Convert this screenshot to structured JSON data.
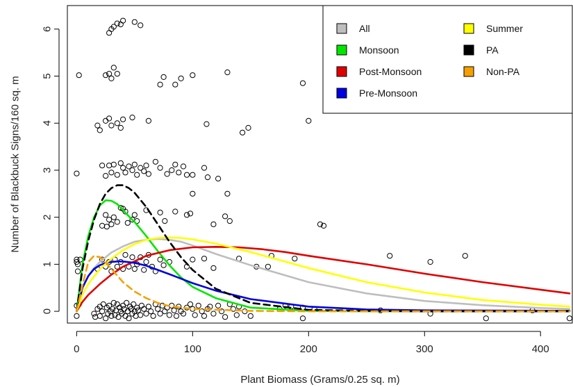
{
  "chart_data": {
    "type": "scatter",
    "title": "",
    "xlabel": "Plant Biomass (Grams/0.25 sq. m)",
    "ylabel": "Number of Blackbuck Signs/160 sq. m",
    "xlim": [
      -8,
      428
    ],
    "ylim": [
      -0.25,
      6.5
    ],
    "xticks": [
      "0",
      "100",
      "200",
      "300",
      "400"
    ],
    "yticks": [
      "0",
      "1",
      "2",
      "3",
      "4",
      "5",
      "6"
    ],
    "grid": false,
    "legend_position": "top-right",
    "legend": [
      {
        "label": "All",
        "color": "#bebebe"
      },
      {
        "label": "Monsoon",
        "color": "#00e600"
      },
      {
        "label": "Post-Monsoon",
        "color": "#e00000"
      },
      {
        "label": "Pre-Monsoon",
        "color": "#0000e0"
      },
      {
        "label": "Summer",
        "color": "#ffff00"
      },
      {
        "label": "PA",
        "color": "#000000"
      },
      {
        "label": "Non-PA",
        "color": "#f5a000"
      }
    ],
    "points": [
      [
        0,
        0.12
      ],
      [
        0,
        -0.1
      ],
      [
        2,
        0.15
      ],
      [
        0,
        2.93
      ],
      [
        2,
        5.02
      ],
      [
        0,
        1.1
      ],
      [
        0,
        1.05
      ],
      [
        1,
        0.85
      ],
      [
        1,
        1.0
      ],
      [
        3,
        1.1
      ],
      [
        15,
        -0.05
      ],
      [
        16,
        -0.12
      ],
      [
        18,
        0.05
      ],
      [
        20,
        0.1
      ],
      [
        20,
        -0.1
      ],
      [
        22,
        0.0
      ],
      [
        23,
        0.15
      ],
      [
        25,
        -0.15
      ],
      [
        26,
        0.08
      ],
      [
        27,
        -0.05
      ],
      [
        28,
        0.12
      ],
      [
        29,
        0.0
      ],
      [
        30,
        -0.1
      ],
      [
        31,
        0.05
      ],
      [
        32,
        0.18
      ],
      [
        33,
        -0.08
      ],
      [
        34,
        0.02
      ],
      [
        35,
        0.15
      ],
      [
        36,
        -0.12
      ],
      [
        37,
        0.08
      ],
      [
        38,
        0.0
      ],
      [
        39,
        -0.05
      ],
      [
        40,
        0.12
      ],
      [
        41,
        0.05
      ],
      [
        42,
        -0.1
      ],
      [
        43,
        0.18
      ],
      [
        44,
        0.0
      ],
      [
        45,
        -0.15
      ],
      [
        46,
        0.1
      ],
      [
        47,
        0.05
      ],
      [
        48,
        -0.05
      ],
      [
        49,
        0.15
      ],
      [
        50,
        0.0
      ],
      [
        51,
        -0.1
      ],
      [
        52,
        0.08
      ],
      [
        53,
        0.02
      ],
      [
        55,
        -0.08
      ],
      [
        56,
        0.12
      ],
      [
        58,
        0.05
      ],
      [
        60,
        -0.05
      ],
      [
        62,
        0.1
      ],
      [
        64,
        0.0
      ],
      [
        66,
        -0.1
      ],
      [
        68,
        0.15
      ],
      [
        70,
        0.05
      ],
      [
        72,
        -0.05
      ],
      [
        74,
        0.12
      ],
      [
        76,
        0.0
      ],
      [
        78,
        0.08
      ],
      [
        80,
        -0.08
      ],
      [
        82,
        0.12
      ],
      [
        84,
        0.02
      ],
      [
        86,
        -0.1
      ],
      [
        88,
        0.1
      ],
      [
        90,
        0.0
      ],
      [
        92,
        -0.05
      ],
      [
        95,
        0.08
      ],
      [
        98,
        0.15
      ],
      [
        100,
        0.05
      ],
      [
        102,
        -0.08
      ],
      [
        105,
        0.12
      ],
      [
        108,
        0.0
      ],
      [
        110,
        -0.1
      ],
      [
        113,
        0.05
      ],
      [
        115,
        0.1
      ],
      [
        118,
        -0.05
      ],
      [
        122,
        0.12
      ],
      [
        125,
        0.0
      ],
      [
        128,
        -0.12
      ],
      [
        132,
        0.15
      ],
      [
        135,
        0.05
      ],
      [
        138,
        -0.08
      ],
      [
        140,
        0.1
      ],
      [
        145,
        0.0
      ],
      [
        150,
        -0.1
      ],
      [
        175,
        0.05
      ],
      [
        180,
        0.12
      ],
      [
        185,
        0.1
      ],
      [
        195,
        -0.15
      ],
      [
        195,
        0.08
      ],
      [
        205,
        0.05
      ],
      [
        262,
        0.02
      ],
      [
        305,
        -0.05
      ],
      [
        353,
        -0.15
      ],
      [
        393,
        0.02
      ],
      [
        425,
        -0.15
      ],
      [
        18,
        0.9
      ],
      [
        22,
        1.1
      ],
      [
        25,
        0.95
      ],
      [
        28,
        1.05
      ],
      [
        30,
        0.85
      ],
      [
        33,
        1.1
      ],
      [
        35,
        0.95
      ],
      [
        38,
        1.05
      ],
      [
        40,
        0.9
      ],
      [
        42,
        1.2
      ],
      [
        45,
        0.95
      ],
      [
        48,
        1.15
      ],
      [
        50,
        0.9
      ],
      [
        52,
        1.0
      ],
      [
        55,
        1.15
      ],
      [
        58,
        0.88
      ],
      [
        60,
        1.05
      ],
      [
        62,
        1.2
      ],
      [
        65,
        0.95
      ],
      [
        68,
        0.85
      ],
      [
        72,
        1.1
      ],
      [
        75,
        0.98
      ],
      [
        80,
        1.05
      ],
      [
        95,
        0.95
      ],
      [
        100,
        1.1
      ],
      [
        110,
        1.12
      ],
      [
        118,
        0.92
      ],
      [
        140,
        1.12
      ],
      [
        155,
        0.95
      ],
      [
        165,
        0.95
      ],
      [
        168,
        1.18
      ],
      [
        188,
        1.12
      ],
      [
        270,
        1.18
      ],
      [
        305,
        1.05
      ],
      [
        335,
        1.18
      ],
      [
        22,
        1.82
      ],
      [
        25,
        2.05
      ],
      [
        26,
        1.8
      ],
      [
        28,
        1.95
      ],
      [
        30,
        1.85
      ],
      [
        32,
        2.0
      ],
      [
        35,
        1.9
      ],
      [
        38,
        2.2
      ],
      [
        40,
        2.18
      ],
      [
        42,
        2.12
      ],
      [
        44,
        1.88
      ],
      [
        48,
        1.95
      ],
      [
        50,
        2.05
      ],
      [
        52,
        1.92
      ],
      [
        60,
        2.15
      ],
      [
        72,
        2.1
      ],
      [
        76,
        1.92
      ],
      [
        85,
        2.12
      ],
      [
        95,
        2.05
      ],
      [
        98,
        2.08
      ],
      [
        118,
        1.85
      ],
      [
        128,
        2.02
      ],
      [
        132,
        1.92
      ],
      [
        210,
        1.85
      ],
      [
        213,
        1.82
      ],
      [
        130,
        2.5
      ],
      [
        100,
        2.5
      ],
      [
        22,
        3.1
      ],
      [
        25,
        2.88
      ],
      [
        28,
        3.1
      ],
      [
        30,
        2.95
      ],
      [
        32,
        3.12
      ],
      [
        35,
        2.9
      ],
      [
        38,
        3.15
      ],
      [
        40,
        3.05
      ],
      [
        42,
        2.95
      ],
      [
        45,
        3.08
      ],
      [
        48,
        3.0
      ],
      [
        50,
        3.12
      ],
      [
        52,
        2.9
      ],
      [
        55,
        3.05
      ],
      [
        58,
        2.98
      ],
      [
        60,
        3.1
      ],
      [
        62,
        2.92
      ],
      [
        68,
        3.18
      ],
      [
        72,
        3.05
      ],
      [
        78,
        2.92
      ],
      [
        82,
        3.0
      ],
      [
        85,
        3.12
      ],
      [
        88,
        2.95
      ],
      [
        92,
        3.08
      ],
      [
        100,
        2.9
      ],
      [
        110,
        3.05
      ],
      [
        113,
        2.85
      ],
      [
        122,
        2.82
      ],
      [
        95,
        2.9
      ],
      [
        18,
        3.95
      ],
      [
        20,
        3.85
      ],
      [
        25,
        4.05
      ],
      [
        28,
        4.1
      ],
      [
        30,
        3.95
      ],
      [
        35,
        4.0
      ],
      [
        38,
        3.9
      ],
      [
        40,
        4.08
      ],
      [
        48,
        4.12
      ],
      [
        62,
        4.05
      ],
      [
        112,
        3.98
      ],
      [
        143,
        3.8
      ],
      [
        148,
        3.9
      ],
      [
        200,
        4.05
      ],
      [
        25,
        5.02
      ],
      [
        28,
        5.05
      ],
      [
        30,
        4.95
      ],
      [
        32,
        5.18
      ],
      [
        35,
        5.05
      ],
      [
        72,
        4.82
      ],
      [
        75,
        4.98
      ],
      [
        85,
        4.82
      ],
      [
        90,
        4.95
      ],
      [
        100,
        5.02
      ],
      [
        130,
        5.08
      ],
      [
        195,
        4.85
      ],
      [
        28,
        5.92
      ],
      [
        30,
        6.0
      ],
      [
        32,
        6.05
      ],
      [
        35,
        6.12
      ],
      [
        40,
        6.18
      ],
      [
        50,
        6.15
      ],
      [
        55,
        6.08
      ],
      [
        38,
        6.1
      ]
    ],
    "curves": [
      {
        "name": "All",
        "color": "#bebebe",
        "dash": false,
        "x": [
          0,
          5,
          10,
          15,
          20,
          30,
          40,
          50,
          60,
          70,
          80,
          90,
          100,
          120,
          150,
          200,
          250,
          300,
          350,
          400,
          425
        ],
        "y": [
          0,
          0.5,
          0.75,
          0.92,
          1.05,
          1.25,
          1.38,
          1.48,
          1.52,
          1.54,
          1.52,
          1.48,
          1.4,
          1.22,
          0.98,
          0.62,
          0.38,
          0.22,
          0.13,
          0.07,
          0.05
        ]
      },
      {
        "name": "Monsoon",
        "color": "#00e600",
        "dash": false,
        "x": [
          0,
          5,
          10,
          15,
          20,
          25,
          30,
          35,
          40,
          45,
          50,
          60,
          70,
          80,
          90,
          100,
          120,
          150,
          200,
          250,
          300,
          425
        ],
        "y": [
          0,
          1.0,
          1.6,
          2.0,
          2.25,
          2.36,
          2.35,
          2.28,
          2.15,
          2.02,
          1.9,
          1.6,
          1.28,
          0.98,
          0.72,
          0.52,
          0.28,
          0.08,
          0.01,
          0,
          0,
          0
        ]
      },
      {
        "name": "Post-Monsoon",
        "color": "#e00000",
        "dash": false,
        "x": [
          0,
          5,
          10,
          20,
          30,
          40,
          60,
          80,
          100,
          120,
          140,
          160,
          180,
          200,
          250,
          300,
          350,
          400,
          425
        ],
        "y": [
          0,
          0.2,
          0.35,
          0.58,
          0.78,
          0.95,
          1.18,
          1.3,
          1.36,
          1.37,
          1.36,
          1.32,
          1.26,
          1.18,
          1.0,
          0.8,
          0.62,
          0.46,
          0.38
        ]
      },
      {
        "name": "Pre-Monsoon",
        "color": "#0000e0",
        "dash": false,
        "x": [
          0,
          5,
          10,
          15,
          20,
          25,
          30,
          35,
          40,
          50,
          60,
          70,
          80,
          100,
          120,
          150,
          200,
          250,
          300,
          425
        ],
        "y": [
          0,
          0.5,
          0.75,
          0.9,
          0.98,
          1.03,
          1.05,
          1.06,
          1.06,
          1.03,
          0.97,
          0.88,
          0.79,
          0.6,
          0.44,
          0.26,
          0.1,
          0.04,
          0.02,
          0.01
        ]
      },
      {
        "name": "Summer",
        "color": "#ffff00",
        "dash": false,
        "x": [
          0,
          5,
          10,
          20,
          30,
          40,
          50,
          60,
          70,
          80,
          90,
          100,
          120,
          150,
          200,
          250,
          300,
          350,
          400,
          425
        ],
        "y": [
          0,
          0.35,
          0.58,
          0.9,
          1.12,
          1.3,
          1.43,
          1.52,
          1.56,
          1.57,
          1.56,
          1.53,
          1.44,
          1.26,
          0.92,
          0.62,
          0.4,
          0.24,
          0.14,
          0.1
        ]
      },
      {
        "name": "PA",
        "color": "#000000",
        "dash": true,
        "x": [
          0,
          5,
          10,
          15,
          20,
          25,
          30,
          35,
          40,
          45,
          50,
          60,
          70,
          80,
          90,
          100,
          120,
          150,
          200,
          250,
          300,
          425
        ],
        "y": [
          0,
          0.9,
          1.5,
          1.95,
          2.28,
          2.5,
          2.62,
          2.68,
          2.68,
          2.62,
          2.52,
          2.22,
          1.85,
          1.48,
          1.15,
          0.88,
          0.48,
          0.18,
          0.03,
          0.01,
          0,
          0
        ]
      },
      {
        "name": "Non-PA",
        "color": "#f5a000",
        "dash": true,
        "x": [
          0,
          5,
          10,
          15,
          20,
          25,
          30,
          40,
          50,
          60,
          70,
          80,
          100,
          150,
          200,
          300,
          425
        ],
        "y": [
          0,
          0.55,
          1.05,
          1.18,
          1.15,
          1.05,
          0.9,
          0.62,
          0.42,
          0.28,
          0.18,
          0.11,
          0.05,
          0.01,
          0,
          0,
          0
        ]
      }
    ]
  }
}
